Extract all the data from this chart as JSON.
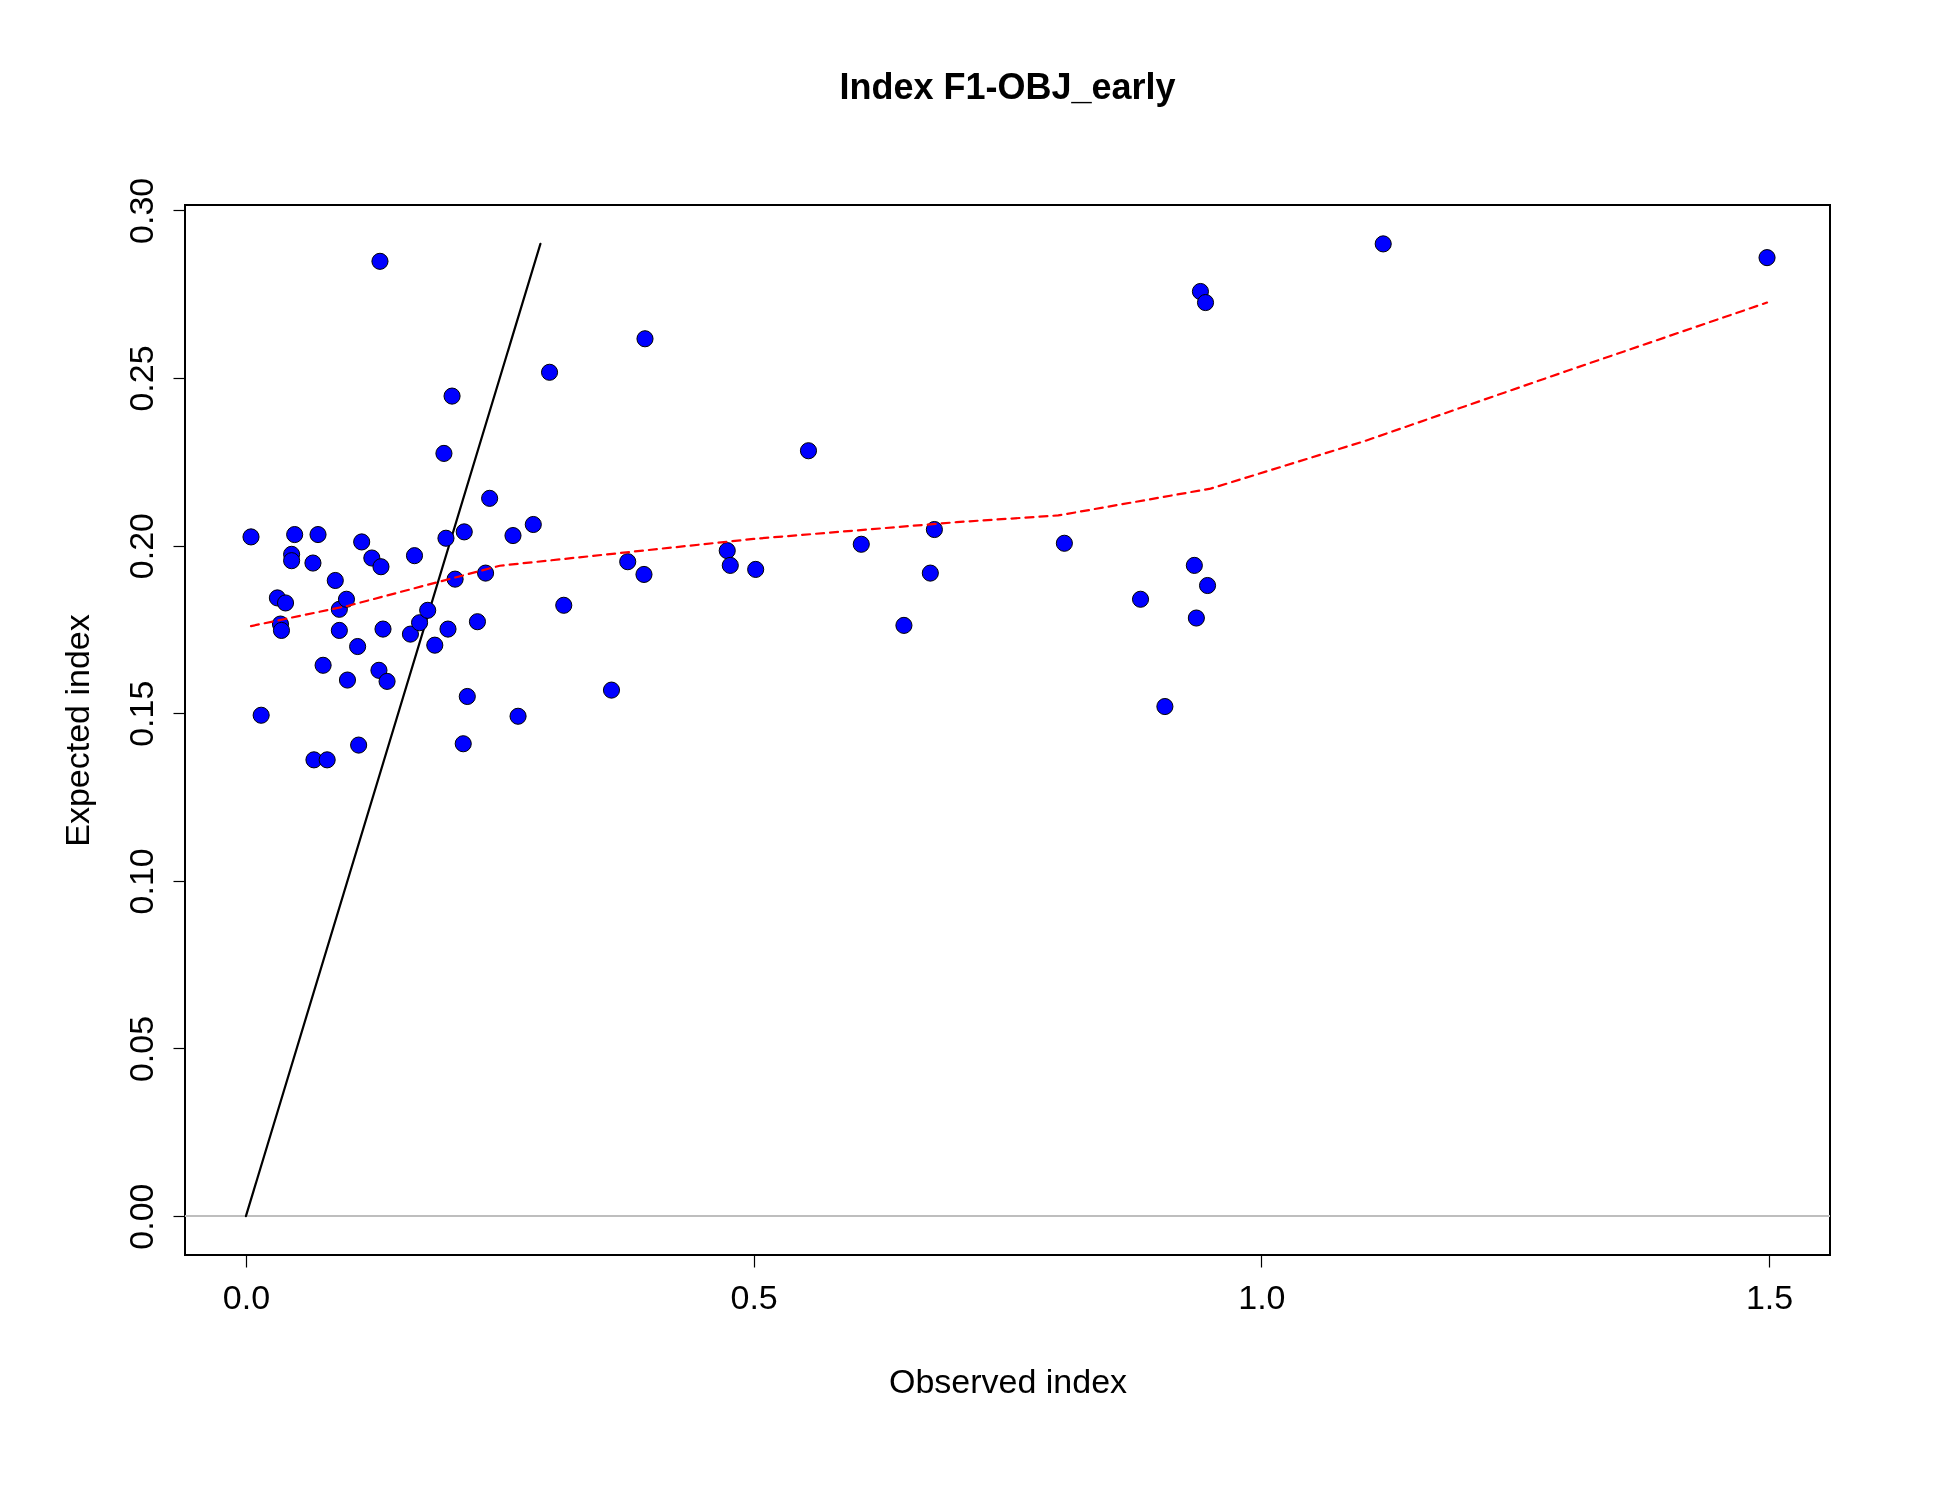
{
  "chart_data": {
    "type": "scatter",
    "title": "Index F1-OBJ_early",
    "xlabel": "Observed index",
    "ylabel": "Expected index",
    "xlim": [
      -0.06,
      1.56
    ],
    "ylim": [
      -0.0116,
      0.3016
    ],
    "xticks": [
      {
        "value": 0,
        "label": "0.0"
      },
      {
        "value": 0.5,
        "label": "0.5"
      },
      {
        "value": 1,
        "label": "1.0"
      },
      {
        "value": 1.5,
        "label": "1.5"
      }
    ],
    "yticks": [
      {
        "value": 0,
        "label": "0.00"
      },
      {
        "value": 0.05,
        "label": "0.05"
      },
      {
        "value": 0.1,
        "label": "0.10"
      },
      {
        "value": 0.15,
        "label": "0.15"
      },
      {
        "value": 0.2,
        "label": "0.20"
      },
      {
        "value": 0.25,
        "label": "0.25"
      },
      {
        "value": 0.3,
        "label": "0.30"
      }
    ],
    "grid": false,
    "ref_lines": [
      {
        "axis": "y",
        "value": 0,
        "color": "#bebebe",
        "line_style": "solid"
      }
    ],
    "series": [
      {
        "type": "line",
        "color": "#000000",
        "line_style": "solid",
        "x": [
          0,
          0.29
        ],
        "values": [
          0,
          0.29
        ]
      },
      {
        "color": "#0000ff",
        "marker": "circle",
        "x": [
          0.005,
          0.015,
          0.031,
          0.034,
          0.035,
          0.039,
          0.045,
          0.045,
          0.048,
          0.066,
          0.067,
          0.071,
          0.076,
          0.08,
          0.088,
          0.092,
          0.092,
          0.099,
          0.1,
          0.11,
          0.111,
          0.114,
          0.124,
          0.131,
          0.132,
          0.133,
          0.135,
          0.139,
          0.162,
          0.166,
          0.171,
          0.179,
          0.186,
          0.195,
          0.197,
          0.199,
          0.203,
          0.206,
          0.214,
          0.215,
          0.218,
          0.228,
          0.236,
          0.24,
          0.263,
          0.268,
          0.283,
          0.299,
          0.313,
          0.36,
          0.376,
          0.392,
          0.393,
          0.474,
          0.477,
          0.502,
          0.554,
          0.606,
          0.648,
          0.674,
          0.678,
          0.806,
          0.881,
          0.905,
          0.934,
          0.936,
          0.94,
          0.945,
          0.947,
          1.12,
          1.498
        ],
        "values": [
          0.2026,
          0.1494,
          0.1844,
          0.1766,
          0.1747,
          0.1829,
          0.1974,
          0.1955,
          0.2033,
          0.1948,
          0.1361,
          0.2033,
          0.1643,
          0.1361,
          0.1896,
          0.181,
          0.1747,
          0.184,
          0.1599,
          0.1699,
          0.1405,
          0.2011,
          0.1963,
          0.1628,
          0.2848,
          0.1937,
          0.1751,
          0.1595,
          0.1736,
          0.197,
          0.177,
          0.1807,
          0.1703,
          0.2275,
          0.2022,
          0.1751,
          0.2446,
          0.19,
          0.1409,
          0.2041,
          0.155,
          0.1773,
          0.1918,
          0.2141,
          0.203,
          0.1491,
          0.2063,
          0.2517,
          0.1822,
          0.1569,
          0.1952,
          0.1914,
          0.2617,
          0.1985,
          0.1941,
          0.1929,
          0.2283,
          0.2004,
          0.1762,
          0.1918,
          0.2048,
          0.2007,
          0.184,
          0.152,
          0.1941,
          0.1784,
          0.2758,
          0.2725,
          0.1881,
          0.29,
          0.2859
        ]
      },
      {
        "type": "line",
        "color": "#ff0000",
        "line_style": "dashed",
        "x": [
          0.005,
          0.1,
          0.25,
          0.5,
          0.7,
          0.8,
          0.95,
          1.1,
          1.3,
          1.498
        ],
        "values": [
          0.176,
          0.182,
          0.194,
          0.202,
          0.207,
          0.209,
          0.217,
          0.231,
          0.252,
          0.2725
        ]
      }
    ]
  }
}
